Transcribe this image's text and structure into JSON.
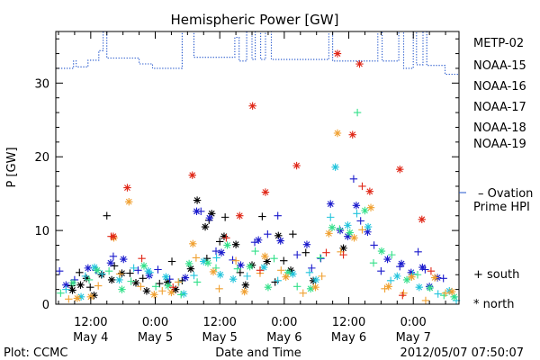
{
  "chart_data": {
    "type": "scatter",
    "title": "Hemispheric Power [GW]",
    "xlabel": "Date and Time",
    "ylabel": "P [GW]",
    "x_unit": "hours since 2012-05-04 00:00 UT",
    "xlim": [
      5.5,
      80.5
    ],
    "ylim": [
      0,
      37
    ],
    "yticks": [
      0,
      10,
      20,
      30
    ],
    "xticks": [
      {
        "x": 12,
        "time": "12:00",
        "date": "May 4"
      },
      {
        "x": 24,
        "time": "0:00",
        "date": "May 5"
      },
      {
        "x": 36,
        "time": "12:00",
        "date": "May 5"
      },
      {
        "x": 48,
        "time": "0:00",
        "date": "May 6"
      },
      {
        "x": 60,
        "time": "12:00",
        "date": "May 6"
      },
      {
        "x": 72,
        "time": "0:00",
        "date": "May 7"
      }
    ],
    "legend": {
      "entries": [
        {
          "name": "METP-02",
          "color": "#000000"
        },
        {
          "name": "NOAA-15",
          "color": "#1a1acc"
        },
        {
          "name": "NOAA-16",
          "color": "#22c4dc"
        },
        {
          "name": "NOAA-17",
          "color": "#33e08a"
        },
        {
          "name": "NOAA-18",
          "color": "#f0a030"
        },
        {
          "name": "NOAA-19",
          "color": "#e02818"
        }
      ],
      "ovation_line1": "– Ovation",
      "ovation_line2": "Prime HPI",
      "ovation_color": "#2255cc",
      "south_label": "+ south",
      "north_label": "* north"
    },
    "ovation_hpi": [
      [
        5.5,
        32.0
      ],
      [
        8.8,
        32.0
      ],
      [
        8.8,
        33.0
      ],
      [
        9.3,
        33.0
      ],
      [
        9.3,
        32.2
      ],
      [
        11.5,
        32.2
      ],
      [
        11.5,
        33.1
      ],
      [
        13.5,
        33.1
      ],
      [
        13.5,
        34.4
      ],
      [
        14.3,
        34.4
      ],
      [
        14.3,
        37.0
      ],
      [
        15.0,
        37.0
      ],
      [
        15.0,
        33.4
      ],
      [
        21.0,
        33.4
      ],
      [
        21.0,
        32.6
      ],
      [
        23.5,
        32.6
      ],
      [
        23.5,
        32.0
      ],
      [
        29.0,
        32.0
      ],
      [
        29.0,
        37.0
      ],
      [
        31.2,
        37.0
      ],
      [
        31.2,
        33.5
      ],
      [
        38.8,
        33.5
      ],
      [
        38.8,
        36.2
      ],
      [
        39.6,
        36.2
      ],
      [
        39.6,
        33.0
      ],
      [
        41.0,
        33.0
      ],
      [
        41.0,
        37.0
      ],
      [
        42.0,
        37.0
      ],
      [
        42.0,
        33.2
      ],
      [
        42.6,
        33.2
      ],
      [
        42.6,
        37.0
      ],
      [
        43.6,
        37.0
      ],
      [
        43.6,
        33.2
      ],
      [
        44.5,
        33.2
      ],
      [
        44.5,
        37.0
      ],
      [
        45.6,
        37.0
      ],
      [
        45.6,
        33.2
      ],
      [
        56.3,
        33.2
      ],
      [
        56.3,
        37.0
      ],
      [
        57.0,
        37.0
      ],
      [
        57.0,
        33.0
      ],
      [
        65.4,
        33.0
      ],
      [
        65.4,
        37.0
      ],
      [
        66.2,
        37.0
      ],
      [
        66.2,
        33.0
      ],
      [
        69.3,
        33.0
      ],
      [
        69.3,
        37.0
      ],
      [
        70.2,
        37.0
      ],
      [
        70.2,
        32.0
      ],
      [
        72.0,
        32.0
      ],
      [
        72.0,
        37.0
      ],
      [
        72.6,
        37.0
      ],
      [
        72.6,
        32.5
      ],
      [
        73.8,
        32.5
      ],
      [
        73.8,
        37.0
      ],
      [
        74.5,
        37.0
      ],
      [
        74.5,
        32.4
      ],
      [
        77.9,
        32.4
      ],
      [
        77.9,
        31.2
      ],
      [
        80.5,
        31.2
      ]
    ],
    "series": [
      {
        "name": "METP-02",
        "points_south": [
          [
            8.4,
            2.5
          ],
          [
            9.9,
            4.3
          ],
          [
            11.9,
            2.3
          ],
          [
            15.0,
            12.0
          ],
          [
            16.4,
            5.2
          ],
          [
            19.3,
            4.2
          ],
          [
            21.7,
            3.5
          ],
          [
            24.8,
            2.8
          ],
          [
            27.1,
            5.8
          ],
          [
            29.0,
            3.2
          ],
          [
            33.6,
            6.2
          ],
          [
            34.0,
            11.4
          ],
          [
            36.0,
            8.5
          ],
          [
            37.0,
            11.8
          ],
          [
            39.8,
            4.3
          ],
          [
            43.9,
            11.9
          ],
          [
            46.3,
            3.0
          ],
          [
            47.9,
            5.9
          ],
          [
            49.6,
            9.5
          ],
          [
            52.0,
            7.0
          ]
        ],
        "points_north": [
          [
            8.6,
            1.9
          ],
          [
            10.1,
            2.6
          ],
          [
            11.2,
            3.5
          ],
          [
            12.6,
            1.2
          ],
          [
            14.0,
            4.0
          ],
          [
            15.9,
            3.3
          ],
          [
            17.8,
            4.2
          ],
          [
            20.4,
            2.9
          ],
          [
            22.4,
            1.8
          ],
          [
            26.3,
            3.0
          ],
          [
            27.8,
            2.0
          ],
          [
            30.6,
            4.8
          ],
          [
            31.8,
            14.1
          ],
          [
            33.3,
            10.5
          ],
          [
            34.5,
            12.3
          ],
          [
            36.8,
            9.2
          ],
          [
            39.0,
            8.1
          ],
          [
            40.8,
            2.6
          ],
          [
            42.0,
            5.3
          ],
          [
            44.8,
            5.8
          ],
          [
            46.9,
            9.3
          ],
          [
            49.2,
            4.6
          ],
          [
            53.4,
            3.2
          ],
          [
            59.0,
            7.6
          ]
        ]
      },
      {
        "name": "NOAA-15",
        "points_south": [
          [
            6.2,
            4.5
          ],
          [
            9.0,
            3.3
          ],
          [
            13.0,
            4.6
          ],
          [
            16.2,
            6.5
          ],
          [
            20.8,
            4.6
          ],
          [
            24.5,
            4.7
          ],
          [
            26.7,
            3.4
          ],
          [
            32.5,
            12.6
          ],
          [
            35.3,
            7.2
          ],
          [
            38.4,
            6.0
          ],
          [
            42.5,
            8.4
          ],
          [
            44.9,
            9.5
          ],
          [
            46.8,
            12.0
          ],
          [
            50.4,
            6.7
          ],
          [
            53.1,
            4.9
          ],
          [
            54.8,
            6.2
          ],
          [
            60.9,
            17.0
          ],
          [
            62.2,
            11.3
          ],
          [
            64.7,
            8.0
          ],
          [
            66.0,
            4.5
          ],
          [
            69.5,
            5.1
          ],
          [
            72.9,
            7.1
          ],
          [
            74.2,
            4.7
          ],
          [
            77.6,
            3.5
          ]
        ],
        "points_north": [
          [
            7.4,
            2.6
          ],
          [
            11.5,
            4.9
          ],
          [
            15.7,
            5.6
          ],
          [
            18.1,
            6.1
          ],
          [
            22.9,
            3.9
          ],
          [
            29.6,
            3.6
          ],
          [
            31.7,
            12.6
          ],
          [
            34.1,
            11.7
          ],
          [
            36.3,
            7.0
          ],
          [
            39.9,
            5.3
          ],
          [
            43.2,
            8.7
          ],
          [
            47.3,
            8.6
          ],
          [
            52.2,
            8.1
          ],
          [
            56.6,
            13.6
          ],
          [
            58.4,
            10.0
          ],
          [
            59.8,
            9.2
          ],
          [
            61.4,
            13.4
          ],
          [
            63.5,
            9.8
          ],
          [
            67.2,
            6.1
          ],
          [
            69.8,
            5.5
          ],
          [
            71.6,
            4.3
          ],
          [
            73.7,
            5.0
          ],
          [
            75.0,
            2.4
          ],
          [
            76.5,
            3.6
          ]
        ]
      },
      {
        "name": "NOAA-16",
        "points_south": [
          [
            7.4,
            2.0
          ],
          [
            11.0,
            3.8
          ],
          [
            14.1,
            4.1
          ],
          [
            20.0,
            4.9
          ],
          [
            23.0,
            4.3
          ],
          [
            28.4,
            3.0
          ],
          [
            31.2,
            3.9
          ],
          [
            35.4,
            6.3
          ],
          [
            41.1,
            3.8
          ],
          [
            46.8,
            3.2
          ],
          [
            52.7,
            4.3
          ],
          [
            56.6,
            11.8
          ],
          [
            61.5,
            12.3
          ],
          [
            67.8,
            3.2
          ],
          [
            71.9,
            4.1
          ],
          [
            76.6,
            1.4
          ],
          [
            80.0,
            0.5
          ]
        ],
        "points_north": [
          [
            10.2,
            1.0
          ],
          [
            12.7,
            5.0
          ],
          [
            17.3,
            3.3
          ],
          [
            22.7,
            4.5
          ],
          [
            26.0,
            3.7
          ],
          [
            29.3,
            1.4
          ],
          [
            33.0,
            5.8
          ],
          [
            36.1,
            4.0
          ],
          [
            38.5,
            3.4
          ],
          [
            44.2,
            5.0
          ],
          [
            49.6,
            4.1
          ],
          [
            53.9,
            3.3
          ],
          [
            57.5,
            18.6
          ],
          [
            59.8,
            10.7
          ],
          [
            63.6,
            10.5
          ],
          [
            69.0,
            3.8
          ],
          [
            73.1,
            2.3
          ],
          [
            78.7,
            1.8
          ]
        ]
      },
      {
        "name": "NOAA-17",
        "points_south": [
          [
            6.4,
            1.5
          ],
          [
            11.7,
            3.3
          ],
          [
            15.4,
            4.5
          ],
          [
            19.5,
            3.1
          ],
          [
            24.1,
            2.4
          ],
          [
            28.8,
            1.3
          ],
          [
            31.8,
            3.0
          ],
          [
            35.3,
            4.9
          ],
          [
            39.3,
            4.8
          ],
          [
            42.6,
            7.2
          ],
          [
            46.1,
            6.2
          ],
          [
            50.4,
            2.4
          ],
          [
            54.7,
            6.3
          ],
          [
            58.3,
            10.2
          ],
          [
            61.6,
            26.0
          ],
          [
            64.6,
            5.6
          ],
          [
            68.0,
            6.7
          ],
          [
            72.8,
            4.0
          ],
          [
            77.7,
            1.2
          ]
        ],
        "points_north": [
          [
            8.7,
            2.9
          ],
          [
            13.2,
            4.6
          ],
          [
            17.8,
            2.0
          ],
          [
            21.9,
            5.2
          ],
          [
            26.4,
            2.5
          ],
          [
            30.3,
            5.5
          ],
          [
            33.8,
            5.6
          ],
          [
            37.4,
            8.0
          ],
          [
            41.6,
            5.1
          ],
          [
            45.0,
            2.3
          ],
          [
            48.7,
            4.3
          ],
          [
            52.9,
            2.1
          ],
          [
            56.9,
            10.4
          ],
          [
            60.2,
            9.7
          ],
          [
            63.0,
            12.7
          ],
          [
            66.1,
            7.2
          ],
          [
            70.8,
            3.3
          ],
          [
            75.1,
            2.2
          ],
          [
            79.6,
            1.0
          ]
        ]
      },
      {
        "name": "NOAA-18",
        "points_south": [
          [
            7.9,
            0.7
          ],
          [
            13.4,
            2.5
          ],
          [
            17.4,
            4.1
          ],
          [
            21.3,
            2.4
          ],
          [
            25.3,
            1.8
          ],
          [
            28.3,
            3.0
          ],
          [
            31.6,
            6.3
          ],
          [
            35.9,
            2.1
          ],
          [
            39.0,
            5.9
          ],
          [
            43.5,
            4.2
          ],
          [
            47.4,
            4.6
          ],
          [
            51.5,
            1.5
          ],
          [
            55.0,
            3.8
          ],
          [
            58.5,
            7.1
          ],
          [
            62.5,
            10.1
          ],
          [
            66.7,
            2.1
          ],
          [
            70.2,
            1.5
          ],
          [
            74.3,
            0.5
          ],
          [
            78.0,
            1.5
          ]
        ],
        "points_north": [
          [
            9.5,
            0.8
          ],
          [
            12.0,
            1.0
          ],
          [
            16.3,
            9.0
          ],
          [
            19.1,
            13.9
          ],
          [
            23.8,
            1.3
          ],
          [
            27.0,
            1.6
          ],
          [
            31.0,
            8.2
          ],
          [
            34.8,
            4.4
          ],
          [
            40.6,
            1.7
          ],
          [
            44.4,
            6.5
          ],
          [
            48.3,
            3.7
          ],
          [
            53.8,
            2.3
          ],
          [
            56.3,
            9.6
          ],
          [
            57.9,
            23.2
          ],
          [
            61.0,
            9.0
          ],
          [
            64.1,
            13.1
          ],
          [
            67.4,
            2.4
          ],
          [
            71.7,
            3.7
          ],
          [
            76.0,
            3.6
          ],
          [
            79.2,
            1.7
          ]
        ]
      },
      {
        "name": "NOAA-19",
        "points_south": [
          [
            15.8,
            9.2
          ],
          [
            21.5,
            6.2
          ],
          [
            27.3,
            2.3
          ],
          [
            37.2,
            9.0
          ],
          [
            43.5,
            4.6
          ],
          [
            55.8,
            7.0
          ],
          [
            59.0,
            6.7
          ],
          [
            62.5,
            16.0
          ],
          [
            70.0,
            1.2
          ],
          [
            75.3,
            4.5
          ]
        ],
        "points_north": [
          [
            16.2,
            9.2
          ],
          [
            18.8,
            15.8
          ],
          [
            30.9,
            17.5
          ],
          [
            39.7,
            12.0
          ],
          [
            42.1,
            26.9
          ],
          [
            44.5,
            15.2
          ],
          [
            50.3,
            18.8
          ],
          [
            57.9,
            34.0
          ],
          [
            60.7,
            23.0
          ],
          [
            62.0,
            32.6
          ],
          [
            63.9,
            15.3
          ],
          [
            69.5,
            18.3
          ],
          [
            73.6,
            11.5
          ]
        ]
      }
    ]
  },
  "footer": {
    "left": "Plot: CCMC",
    "right": "2012/05/07 07:50:07"
  }
}
